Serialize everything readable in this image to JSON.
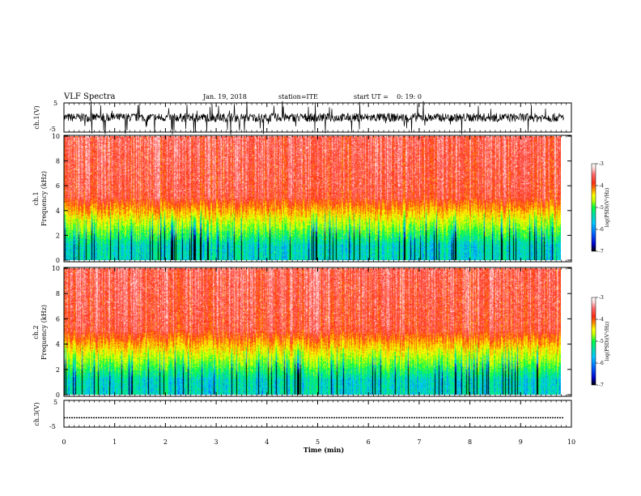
{
  "header": {
    "title": "VLF Spectra",
    "date": "Jan. 19, 2018",
    "station": "station=ITE",
    "start_ut": "start UT =    0: 19: 0"
  },
  "colors": {
    "spectrogram_scale": [
      "#000000",
      "#0000c8",
      "#0064ff",
      "#00c8ff",
      "#00e0a0",
      "#00ff40",
      "#c8ff00",
      "#ffff00",
      "#ff9600",
      "#ff2d14",
      "#ff6e6e",
      "#ffdcdc",
      "#ffffff"
    ],
    "trace": "#000000"
  },
  "chart_data": [
    {
      "type": "line",
      "name": "ch.1 waveform",
      "ylabel": "ch.1(V)",
      "ylim": [
        -5,
        5
      ],
      "yticks": [
        "5",
        "-5"
      ],
      "x_range_min": [
        0,
        9.85
      ],
      "description_values": {
        "baseline_v": 0,
        "noise_amplitude_v": 2.5,
        "spike_max_v": 5
      }
    },
    {
      "type": "heatmap",
      "name": "ch.1 spectrogram",
      "ylabel": "ch.1\nFrequency (kHz)",
      "ylabel_line1": "ch.1",
      "ylabel_line2": "Frequency (kHz)",
      "ylim": [
        0,
        10
      ],
      "yticks": [
        "0",
        "2",
        "4",
        "6",
        "8",
        "10"
      ],
      "colorbar": {
        "label": "log(PSD)(V^2/Hz)",
        "label_text": "log(PSD)(V²/Hz)",
        "range": [
          -7,
          -3
        ],
        "ticks": [
          "-3",
          "-4",
          "-5",
          "-6",
          "-7"
        ]
      }
    },
    {
      "type": "heatmap",
      "name": "ch.2 spectrogram",
      "ylabel_line1": "ch.2",
      "ylabel_line2": "Frequency (kHz)",
      "ylim": [
        0,
        10
      ],
      "yticks": [
        "0",
        "2",
        "4",
        "6",
        "8",
        "10"
      ],
      "colorbar": {
        "label_text": "log(PSD)(V²/Hz)",
        "range": [
          -7,
          -3
        ],
        "ticks": [
          "-3",
          "-4",
          "-5",
          "-6",
          "-7"
        ]
      }
    },
    {
      "type": "line",
      "name": "ch.3 waveform",
      "ylabel": "ch.3(V)",
      "ylim": [
        -5,
        5
      ],
      "yticks": [
        "5",
        "-5"
      ],
      "values": {
        "level_v": -1.5
      },
      "x_range_min": [
        0,
        9.85
      ]
    }
  ],
  "xaxis": {
    "label": "Time (min)",
    "range": [
      0,
      10
    ],
    "ticks": [
      "0",
      "1",
      "2",
      "3",
      "4",
      "5",
      "6",
      "7",
      "8",
      "9",
      "10"
    ]
  }
}
